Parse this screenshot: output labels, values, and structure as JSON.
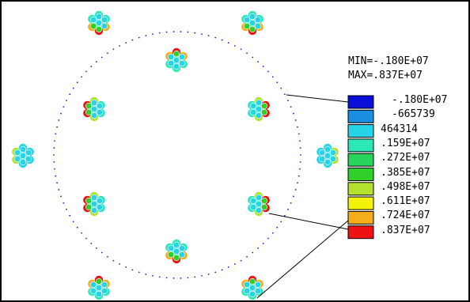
{
  "legend": {
    "min_label": "MIN=-.180E+07",
    "max_label": "MAX=.837E+07",
    "entries": [
      {
        "value": "-.180E+07",
        "color": "#0a10d8"
      },
      {
        "value": "-665739",
        "color": "#1a8fe0"
      },
      {
        "value": "464314",
        "color": "#26d4e8"
      },
      {
        "value": ".159E+07",
        "color": "#2ce8b8"
      },
      {
        "value": ".272E+07",
        "color": "#28d45a"
      },
      {
        "value": ".385E+07",
        "color": "#2fd02a"
      },
      {
        "value": ".498E+07",
        "color": "#b4e030"
      },
      {
        "value": ".611E+07",
        "color": "#f2f20a"
      },
      {
        "value": ".724E+07",
        "color": "#f5ae1a"
      },
      {
        "value": ".837E+07",
        "color": "#ee1212"
      }
    ]
  },
  "colors": {
    "boundary_dots": "#1b1bdc",
    "frame": "#000000"
  }
}
